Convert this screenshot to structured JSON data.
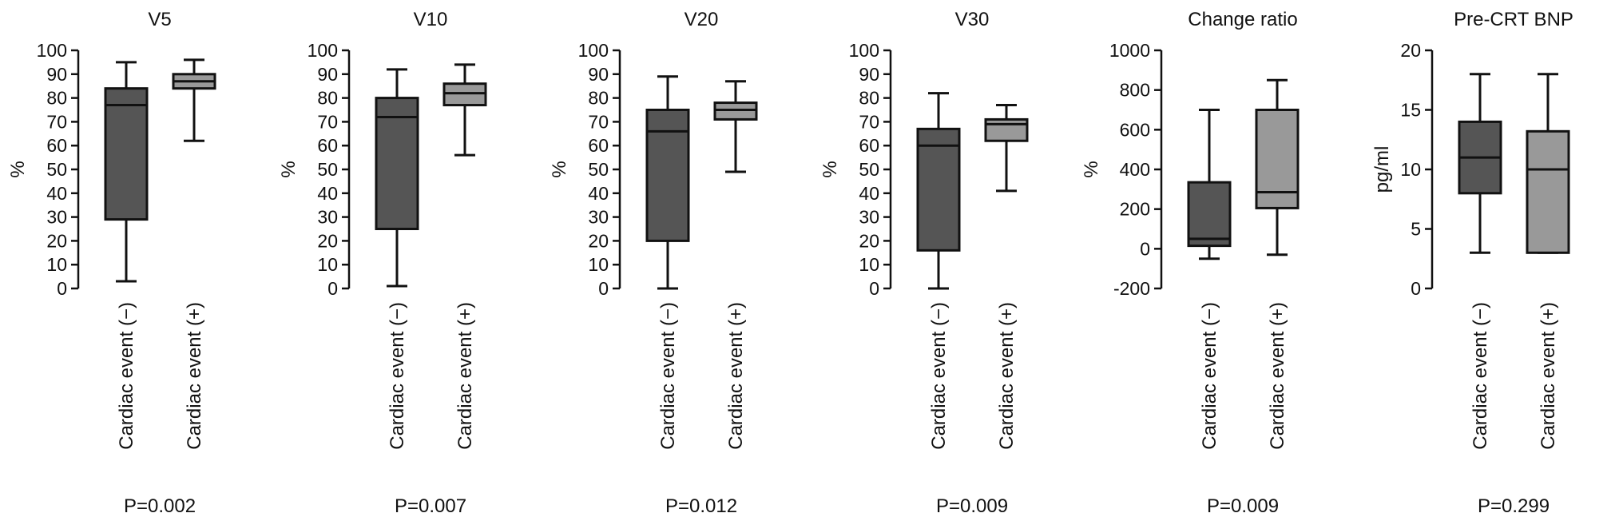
{
  "colors": {
    "group_minus": "#555555",
    "group_plus": "#999999",
    "stroke": "#111111"
  },
  "chart_data": [
    {
      "type": "boxplot",
      "title": "V5",
      "ylabel": "%",
      "ylim": [
        0,
        100
      ],
      "yticks": [
        0,
        10,
        20,
        30,
        40,
        50,
        60,
        70,
        80,
        90,
        100
      ],
      "categories": [
        "Cardiac event (−)",
        "Cardiac event (+)"
      ],
      "boxes": [
        {
          "min": 3,
          "q1": 29,
          "median": 77,
          "q3": 84,
          "max": 95
        },
        {
          "min": 62,
          "q1": 84,
          "median": 87,
          "q3": 90,
          "max": 96
        }
      ],
      "pvalue": "P=0.002"
    },
    {
      "type": "boxplot",
      "title": "V10",
      "ylabel": "%",
      "ylim": [
        0,
        100
      ],
      "yticks": [
        0,
        10,
        20,
        30,
        40,
        50,
        60,
        70,
        80,
        90,
        100
      ],
      "categories": [
        "Cardiac event (−)",
        "Cardiac event (+)"
      ],
      "boxes": [
        {
          "min": 1,
          "q1": 25,
          "median": 72,
          "q3": 80,
          "max": 92
        },
        {
          "min": 56,
          "q1": 77,
          "median": 82,
          "q3": 86,
          "max": 94
        }
      ],
      "pvalue": "P=0.007"
    },
    {
      "type": "boxplot",
      "title": "V20",
      "ylabel": "%",
      "ylim": [
        0,
        100
      ],
      "yticks": [
        0,
        10,
        20,
        30,
        40,
        50,
        60,
        70,
        80,
        90,
        100
      ],
      "categories": [
        "Cardiac event (−)",
        "Cardiac event (+)"
      ],
      "boxes": [
        {
          "min": 0,
          "q1": 20,
          "median": 66,
          "q3": 75,
          "max": 89
        },
        {
          "min": 49,
          "q1": 71,
          "median": 75,
          "q3": 78,
          "max": 87
        }
      ],
      "pvalue": "P=0.012"
    },
    {
      "type": "boxplot",
      "title": "V30",
      "ylabel": "%",
      "ylim": [
        0,
        100
      ],
      "yticks": [
        0,
        10,
        20,
        30,
        40,
        50,
        60,
        70,
        80,
        90,
        100
      ],
      "categories": [
        "Cardiac event (−)",
        "Cardiac event (+)"
      ],
      "boxes": [
        {
          "min": 0,
          "q1": 16,
          "median": 60,
          "q3": 67,
          "max": 82
        },
        {
          "min": 41,
          "q1": 62,
          "median": 69,
          "q3": 71,
          "max": 77
        }
      ],
      "pvalue": "P=0.009"
    },
    {
      "type": "boxplot",
      "title": "Change ratio",
      "ylabel": "%",
      "ylim": [
        -200,
        1000
      ],
      "yticks": [
        -200,
        0,
        200,
        400,
        600,
        800,
        1000
      ],
      "categories": [
        "Cardiac event (−)",
        "Cardiac event (+)"
      ],
      "boxes": [
        {
          "min": -50,
          "q1": 15,
          "median": 50,
          "q3": 335,
          "max": 700
        },
        {
          "min": -30,
          "q1": 205,
          "median": 285,
          "q3": 700,
          "max": 850
        }
      ],
      "pvalue": "P=0.009"
    },
    {
      "type": "boxplot",
      "title": "Pre-CRT BNP",
      "ylabel": "pg/ml",
      "ylim": [
        0,
        20
      ],
      "yticks": [
        0,
        5,
        10,
        15,
        20
      ],
      "categories": [
        "Cardiac event (−)",
        "Cardiac event (+)"
      ],
      "boxes": [
        {
          "min": 3,
          "q1": 8,
          "median": 11,
          "q3": 14,
          "max": 18
        },
        {
          "min": 3,
          "q1": 3,
          "median": 10,
          "q3": 13.2,
          "max": 18
        }
      ],
      "pvalue": "P=0.299"
    }
  ]
}
